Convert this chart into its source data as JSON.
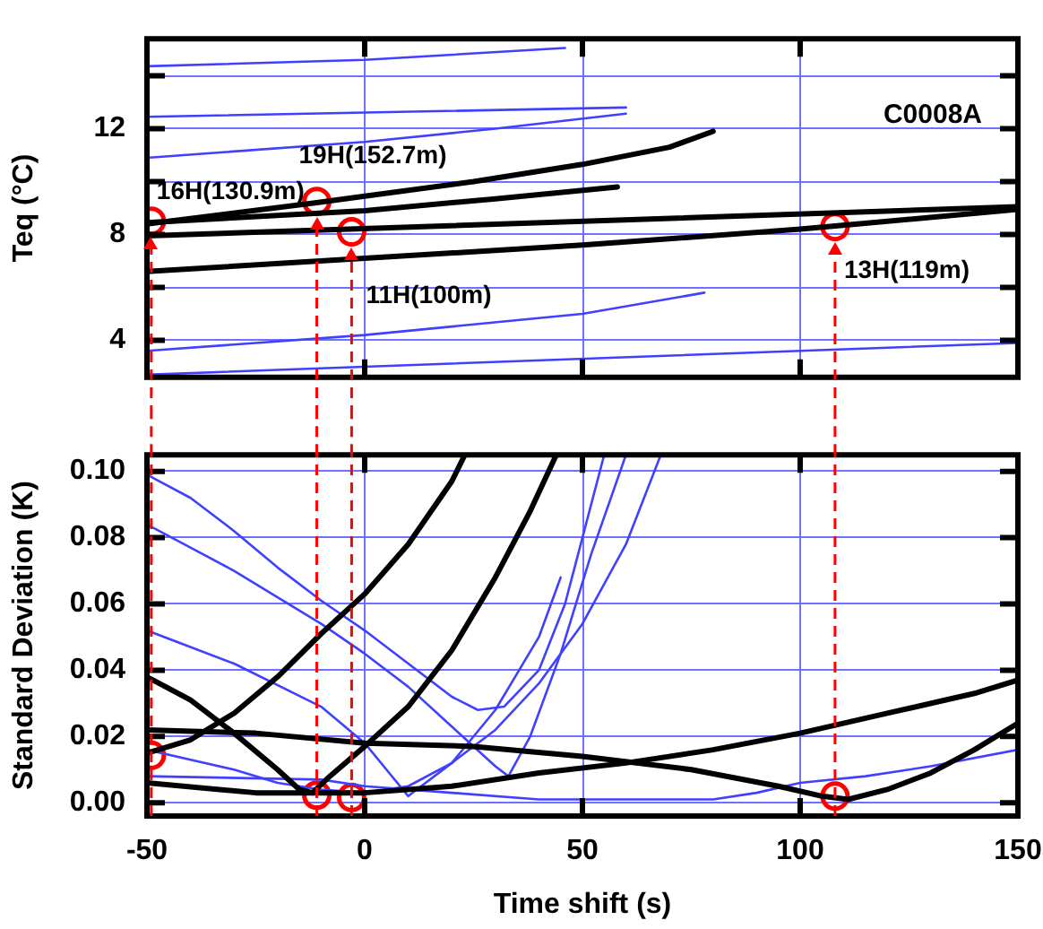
{
  "chart_data": [
    {
      "type": "line",
      "ylabel": "Teq (°C)",
      "xlim": [
        -50,
        150
      ],
      "ylim": [
        2.6,
        15.4
      ],
      "xticks": [
        -50,
        0,
        50,
        100,
        150
      ],
      "yticks": [
        4,
        {
          "value": 6,
          "label": null
        },
        8,
        {
          "value": 10,
          "label": null
        },
        12,
        {
          "value": 14,
          "label": null
        }
      ],
      "tick_labels": "y",
      "grid": true,
      "legend": false,
      "marker": "none",
      "series": [
        {
          "color": "#4040ff",
          "x": [
            -50,
            0,
            46
          ],
          "values": [
            14.36,
            14.6,
            15.05
          ]
        },
        {
          "color": "#4040ff",
          "x": [
            -50,
            60
          ],
          "values": [
            12.45,
            12.8
          ]
        },
        {
          "color": "#4040ff",
          "x": [
            -50,
            0,
            30,
            60
          ],
          "values": [
            10.9,
            11.5,
            12.0,
            12.57
          ]
        },
        {
          "color": "#000000",
          "x": [
            -50,
            -11,
            0,
            25,
            50,
            70,
            80
          ],
          "values": [
            8.4,
            9.2,
            9.45,
            10.0,
            10.65,
            11.3,
            11.9
          ]
        },
        {
          "color": "#000000",
          "x": [
            -50,
            0,
            30,
            58
          ],
          "values": [
            8.45,
            8.9,
            9.35,
            9.8
          ]
        },
        {
          "color": "#000000",
          "x": [
            -50,
            150
          ],
          "values": [
            7.95,
            9.05
          ]
        },
        {
          "color": "#000000",
          "x": [
            -50,
            0,
            50,
            100,
            150
          ],
          "values": [
            6.6,
            7.1,
            7.6,
            8.2,
            8.95
          ]
        },
        {
          "color": "#4040ff",
          "x": [
            -50,
            0,
            50,
            78
          ],
          "values": [
            3.6,
            4.2,
            5.0,
            5.8
          ]
        },
        {
          "color": "#4040ff",
          "x": [
            -50,
            150
          ],
          "values": [
            2.7,
            3.9
          ]
        },
        {
          "type": "scatter",
          "marker": "circle",
          "color": "#ff0000",
          "x": [
            -49,
            -11,
            -3,
            108
          ],
          "values": [
            8.5,
            9.25,
            8.1,
            8.3
          ]
        }
      ],
      "ref_lines": [
        {
          "axis": "x",
          "value": -49,
          "color": "#ff0000",
          "line_style": "dashed"
        },
        {
          "axis": "x",
          "value": -11,
          "color": "#ff0000",
          "line_style": "dashed"
        },
        {
          "axis": "x",
          "value": -3,
          "color": "#ff0000",
          "line_style": "dashed"
        },
        {
          "axis": "x",
          "value": 108,
          "color": "#ff0000",
          "line_style": "dashed"
        }
      ],
      "annotations": [
        "C0008A",
        {
          "text": "16H(130.9m)",
          "x": -49,
          "y": 8.5
        },
        {
          "text": "19H(152.7m)",
          "x": -11,
          "y": 9.25
        },
        {
          "text": "11H(100m)",
          "x": -3,
          "y": 8.1
        },
        {
          "text": "13H(119m)",
          "x": 108,
          "y": 8.3
        }
      ]
    },
    {
      "type": "line",
      "xlabel": "Time shift (s)",
      "ylabel": "Standard Deviation (K)",
      "xlim": [
        -50,
        150
      ],
      "ylim": [
        -0.004,
        0.105
      ],
      "xticks": [
        -50,
        0,
        50,
        100,
        150
      ],
      "yticks": [
        {
          "value": 0,
          "label": "0.00"
        },
        0.02,
        0.04,
        0.06,
        0.08,
        {
          "value": 0.1,
          "label": "0.10"
        }
      ],
      "grid": true,
      "legend": false,
      "marker": "none",
      "series": [
        {
          "color": "#000000",
          "x": [
            -50,
            -40,
            -30,
            -20,
            -15,
            -12,
            -8,
            0,
            10,
            20,
            30,
            38,
            44
          ],
          "values": [
            0.038,
            0.031,
            0.021,
            0.01,
            0.004,
            0.003,
            0.008,
            0.017,
            0.029,
            0.046,
            0.068,
            0.088,
            0.105
          ]
        },
        {
          "color": "#000000",
          "x": [
            -50,
            -40,
            -30,
            -20,
            -10,
            0,
            10,
            20,
            23
          ],
          "values": [
            0.015,
            0.019,
            0.027,
            0.038,
            0.051,
            0.063,
            0.078,
            0.097,
            0.105
          ]
        },
        {
          "color": "#000000",
          "x": [
            -50,
            -25,
            0,
            25,
            50,
            75,
            95,
            105,
            111,
            120,
            130,
            140,
            150
          ],
          "values": [
            0.022,
            0.021,
            0.018,
            0.017,
            0.014,
            0.01,
            0.005,
            0.002,
            0.001,
            0.004,
            0.009,
            0.016,
            0.024
          ]
        },
        {
          "color": "#000000",
          "x": [
            -50,
            -25,
            0,
            20,
            40,
            60,
            80,
            100,
            120,
            140,
            150
          ],
          "values": [
            0.006,
            0.003,
            0.003,
            0.005,
            0.009,
            0.012,
            0.016,
            0.021,
            0.027,
            0.033,
            0.037
          ]
        },
        {
          "color": "#4040ff",
          "x": [
            -50,
            -40,
            -30,
            -20,
            -10,
            0,
            10,
            20,
            26,
            32,
            40,
            46,
            50,
            55
          ],
          "values": [
            0.099,
            0.092,
            0.082,
            0.071,
            0.061,
            0.052,
            0.042,
            0.032,
            0.028,
            0.029,
            0.04,
            0.06,
            0.08,
            0.105
          ]
        },
        {
          "color": "#4040ff",
          "x": [
            -50,
            -30,
            -10,
            0,
            10,
            20,
            30,
            33,
            38,
            45,
            52,
            60
          ],
          "values": [
            0.084,
            0.07,
            0.054,
            0.045,
            0.035,
            0.023,
            0.011,
            0.008,
            0.02,
            0.045,
            0.075,
            0.105
          ]
        },
        {
          "color": "#4040ff",
          "x": [
            -50,
            -30,
            -10,
            0,
            5,
            10,
            20,
            30,
            40,
            45
          ],
          "values": [
            0.052,
            0.042,
            0.029,
            0.018,
            0.01,
            0.002,
            0.012,
            0.028,
            0.05,
            0.068
          ]
        },
        {
          "color": "#4040ff",
          "x": [
            -50,
            -40,
            -30,
            -20,
            -10,
            0,
            10,
            20,
            30,
            40,
            50,
            60,
            68
          ],
          "values": [
            0.016,
            0.013,
            0.01,
            0.006,
            0.004,
            0.003,
            0.005,
            0.012,
            0.022,
            0.036,
            0.054,
            0.078,
            0.105
          ]
        },
        {
          "color": "#4040ff",
          "x": [
            -50,
            -10,
            0,
            20,
            40,
            80,
            90,
            100,
            115,
            130,
            150
          ],
          "values": [
            0.008,
            0.007,
            0.005,
            0.003,
            0.001,
            0.001,
            0.003,
            0.006,
            0.008,
            0.011,
            0.016
          ]
        },
        {
          "type": "scatter",
          "marker": "circle",
          "color": "#ff0000",
          "x": [
            -49,
            -11,
            -3,
            108
          ],
          "values": [
            0.0143,
            0.0023,
            0.0016,
            0.002
          ]
        }
      ],
      "ref_lines": [
        {
          "axis": "x",
          "value": -49,
          "color": "#ff0000",
          "line_style": "dashed"
        },
        {
          "axis": "x",
          "value": -11,
          "color": "#ff0000",
          "line_style": "dashed"
        },
        {
          "axis": "x",
          "value": -3,
          "color": "#ff0000",
          "line_style": "dashed"
        },
        {
          "axis": "x",
          "value": 108,
          "color": "#ff0000",
          "line_style": "dashed"
        }
      ]
    }
  ]
}
